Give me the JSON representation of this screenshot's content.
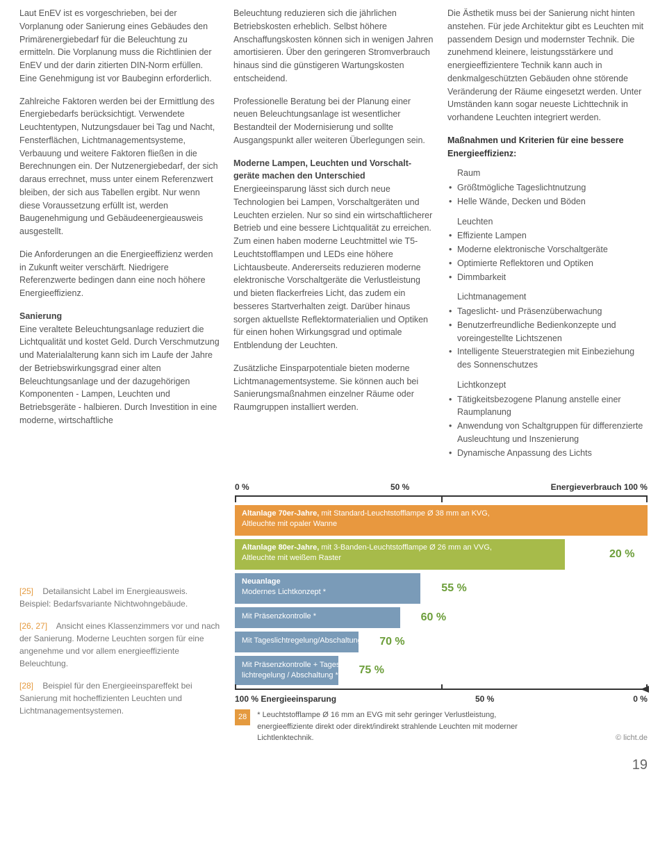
{
  "col1": {
    "p1": "Laut EnEV ist es vorgeschrieben, bei der Vorplanung oder Sanierung eines Gebäudes den Primärenergiebedarf für die Beleuchtung zu ermitteln. Die Vorplanung muss die Richtlinien der EnEV und der darin zitierten DIN-Norm erfüllen. Eine Genehmigung ist vor Baubeginn erforderlich.",
    "p2": "Zahlreiche Faktoren werden bei der Ermittlung des Energiebedarfs berücksichtigt. Verwendete Leuchtentypen, Nutzungsdauer bei Tag und Nacht, Fensterflächen, Lichtmanagementsysteme, Verbauung und weitere Faktoren fließen in die Berechnungen ein. Der Nutzenergiebedarf, der sich daraus errechnet, muss unter einem Referenzwert bleiben, der sich aus Tabellen ergibt. Nur wenn diese Voraussetzung erfüllt ist, werden Baugenehmigung und Gebäudeenergieausweis ausgestellt.",
    "p3": "Die Anforderungen an die Energieeffizienz werden in Zukunft weiter verschärft. Niedrigere Referenzwerte bedingen dann eine noch höhere Energieeffizienz.",
    "h1": "Sanierung",
    "p4": "Eine veraltete Beleuchtungsanlage reduziert die Lichtqualität und kostet Geld. Durch Verschmutzung und Materialalterung  kann sich im Laufe der Jahre der Betriebswirkungsgrad einer alten Beleuchtungsanlage und der dazugehörigen Komponenten - Lampen, Leuchten und Betriebsgeräte - halbieren. Durch Investition in eine moderne, wirtschaftliche"
  },
  "col2": {
    "p1": "Beleuchtung reduzieren sich die jährlichen Betriebskosten erheblich. Selbst höhere Anschaffungskosten können sich in wenigen Jahren amortisieren. Über den geringeren Stromverbrauch hinaus sind die günstigeren Wartungskosten entscheidend.",
    "p2": "Professionelle Beratung bei der Planung einer neuen Beleuchtungsanlage ist wesentlicher Bestandteil der Modernisierung und sollte Ausgangspunkt aller weiteren Überlegungen sein.",
    "h1a": "Moderne Lampen, Leuchten und Vorschalt-",
    "h1b": "geräte machen den Unterschied",
    "p3": "Energieeinsparung lässt sich durch neue Technologien bei Lampen, Vorschaltgeräten und Leuchten erzielen. Nur so sind ein wirtschaftlicherer Betrieb und eine bessere Lichtqualität zu erreichen. Zum einen haben moderne Leuchtmittel wie T5-Leuchtstofflampen und LEDs eine höhere Lichtausbeute. Andererseits reduzieren moderne elektronische Vorschaltgeräte die Verlustleistung und bieten flackerfreies Licht, das zudem ein besseres Startverhalten zeigt. Darüber hinaus sorgen aktuellste Reflektormaterialien und Optiken für einen hohen Wirkungsgrad und optimale Entblendung der Leuchten.",
    "p4": "Zusätzliche Einsparpotentiale bieten moderne Lichtmanagementsysteme. Sie können auch bei Sanierungsmaßnahmen einzelner Räume oder Raumgruppen installiert werden."
  },
  "col3": {
    "p1": "Die Ästhetik muss bei der Sanierung nicht hinten anstehen. Für jede Architektur gibt es Leuchten mit passendem Design und modernster Technik. Die zunehmend kleinere, leistungsstärkere und energieeffizientere Technik kann auch in denkmalgeschützten Gebäuden ohne störende Veränderung der Räume eingesetzt werden. Unter Umständen kann sogar neueste Lichttechnik in vorhandene Leuchten integriert werden.",
    "measures_intro_a": "Maßnahmen und Kriterien für eine bessere",
    "measures_intro_b": "Energieeffizienz:",
    "cat1": "Raum",
    "cat1_items": [
      "Größtmögliche Tageslichtnutzung",
      "Helle Wände, Decken und Böden"
    ],
    "cat2": "Leuchten",
    "cat2_items": [
      "Effiziente Lampen",
      "Moderne elektronische Vorschaltgeräte",
      "Optimierte Reflektoren und Optiken",
      "Dimmbarkeit"
    ],
    "cat3": "Lichtmanagement",
    "cat3_items": [
      "Tageslicht- und Präsenzüberwachung",
      "Benutzerfreundliche Bedienkonzepte und voreingestellte Lichtszenen",
      "Intelligente Steuerstrategien mit Einbeziehung des Sonnenschutzes"
    ],
    "cat4": "Lichtkonzept",
    "cat4_items": [
      "Tätigkeitsbezogene Planung anstelle einer Raumplanung",
      "Anwendung von Schaltgruppen für differenzierte Ausleuchtung und Inszenierung",
      "Dynamische Anpassung des Lichts"
    ]
  },
  "captions": {
    "c1ref": "[25]",
    "c1": "Detailansicht Label im Energieausweis. Beispiel: Bedarfsvariante Nichtwohngebäude.",
    "c2ref": "[26, 27]",
    "c2": "Ansicht eines Klassenzimmers vor und nach der Sanierung. Moderne Leuchten sorgen für eine angenehme und vor allem energieeffiziente Beleuchtung.",
    "c3ref": "[28]",
    "c3": "Beispiel für den Energieeinspareffekt bei Sanierung mit hocheffizienten Leuchten und Lichtmanagementsystemen."
  },
  "chart": {
    "axis_top": {
      "left": "0 %",
      "mid": "50 %",
      "right": "Energieverbrauch  100 %"
    },
    "axis_bot": {
      "left": "100 %  Energieeinsparung",
      "mid": "50 %",
      "right": "0 %"
    },
    "bars": [
      {
        "title": "Altanlage 70er-Jahre,",
        "subtitle": "mit Standard-Leuchtstofflampe Ø 38 mm an KVG,",
        "line2": "Altleuchte mit opaler Wanne",
        "width_pct": 100,
        "color": "#e8983f",
        "savings": ""
      },
      {
        "title": "Altanlage 80er-Jahre,",
        "subtitle": "mit 3-Banden-Leuchtstofflampe Ø 26 mm an VVG,",
        "line2": "Altleuchte mit weißem Raster",
        "width_pct": 80,
        "color": "#a7bb4a",
        "savings": "20 %"
      },
      {
        "title": "Neuanlage",
        "subtitle": "",
        "line2": "Modernes Lichtkonzept *",
        "width_pct": 45,
        "color": "#7a9bb8",
        "savings": "55 %"
      }
    ],
    "short_bars": [
      {
        "label": "Mit Präsenzkontrolle *",
        "width_pct": 40,
        "color": "#7a9bb8",
        "savings": "60 %"
      },
      {
        "label": "Mit Tageslichtregelung/Abschaltung *",
        "width_pct": 30,
        "color": "#7a9bb8",
        "savings": "70 %"
      },
      {
        "label": "Mit Präsenzkontrolle + Tages-",
        "label2": "lichtregelung / Abschaltung *",
        "width_pct": 25,
        "color": "#7a9bb8",
        "savings": "75 %"
      }
    ],
    "footnote_num": "28",
    "footnote_text": "* Leuchtstofflampe Ø 16 mm an EVG mit sehr geringer Verlustleistung, energieeffiziente direkt oder direkt/indirekt strahlende Leuchten mit moderner Lichtlenktechnik.",
    "credit": "© licht.de"
  },
  "page_number": "19"
}
